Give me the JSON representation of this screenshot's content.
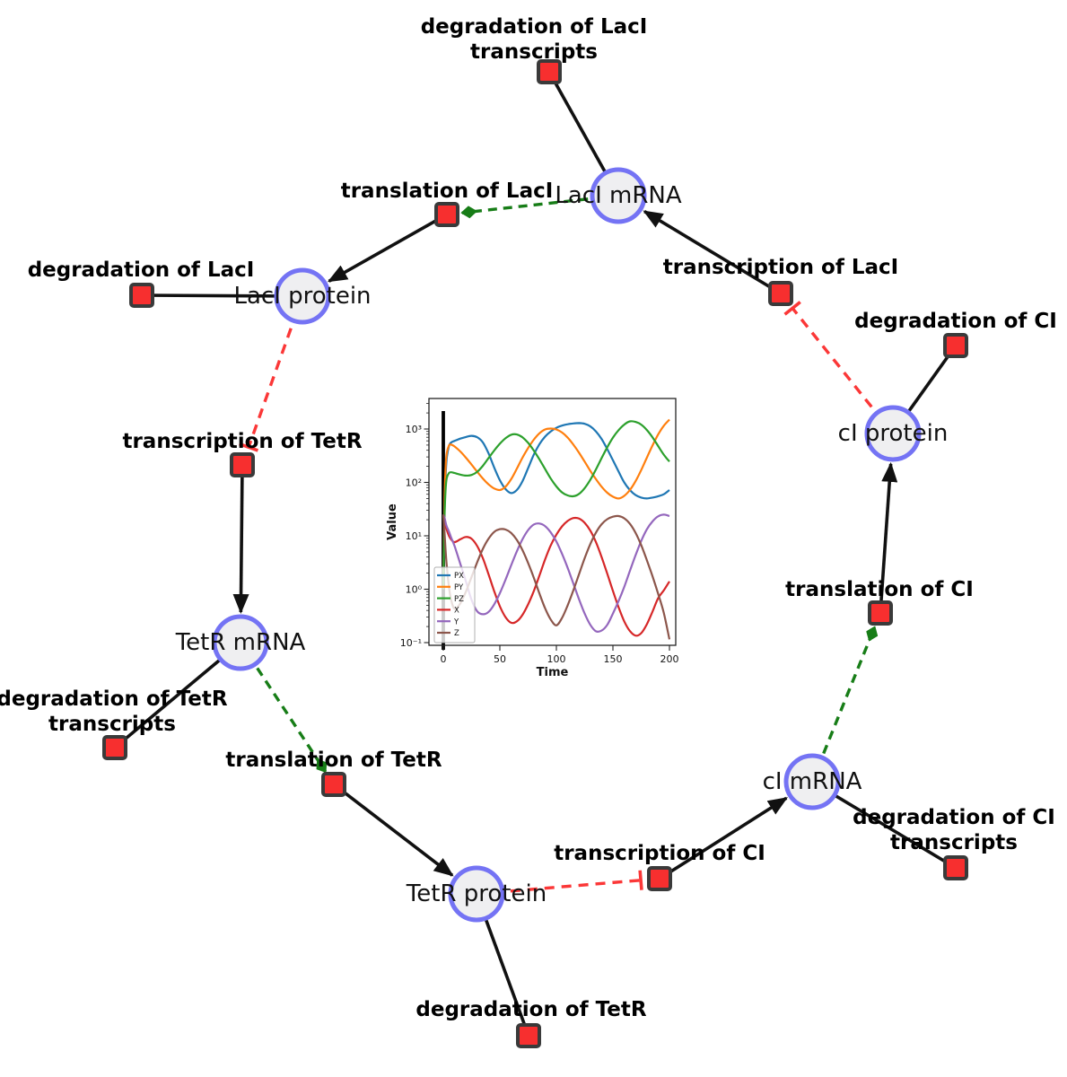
{
  "diagram": {
    "species": [
      {
        "id": "laci_mrna",
        "label": "LacI mRNA"
      },
      {
        "id": "laci_protein",
        "label": "LacI protein"
      },
      {
        "id": "tetr_mrna",
        "label": "TetR mRNA"
      },
      {
        "id": "tetr_protein",
        "label": "TetR protein"
      },
      {
        "id": "ci_mrna",
        "label": "cI mRNA"
      },
      {
        "id": "ci_protein",
        "label": "cI protein"
      }
    ],
    "reactions": [
      {
        "id": "deg_laci_tx",
        "lines": [
          "degradation of LacI",
          "transcripts"
        ]
      },
      {
        "id": "transl_laci",
        "lines": [
          "translation of LacI"
        ]
      },
      {
        "id": "deg_laci",
        "lines": [
          "degradation of LacI"
        ]
      },
      {
        "id": "tx_laci",
        "lines": [
          "transcription of LacI"
        ]
      },
      {
        "id": "deg_ci",
        "lines": [
          "degradation of CI"
        ]
      },
      {
        "id": "tx_tetr",
        "lines": [
          "transcription of TetR"
        ]
      },
      {
        "id": "deg_tetr_tx",
        "lines": [
          "degradation of TetR",
          "transcripts"
        ]
      },
      {
        "id": "transl_tetr",
        "lines": [
          "translation of TetR"
        ]
      },
      {
        "id": "deg_tetr",
        "lines": [
          "degradation of TetR"
        ]
      },
      {
        "id": "tx_ci",
        "lines": [
          "transcription of CI"
        ]
      },
      {
        "id": "deg_ci_tx",
        "lines": [
          "degradation of CI",
          "transcripts"
        ]
      },
      {
        "id": "transl_ci",
        "lines": [
          "translation of CI"
        ]
      }
    ],
    "edges": [
      {
        "from": "laci_mrna",
        "to": "deg_laci_tx",
        "type": "consumption"
      },
      {
        "from": "laci_mrna",
        "to": "transl_laci",
        "type": "modifier"
      },
      {
        "from": "transl_laci",
        "to": "laci_protein",
        "type": "production"
      },
      {
        "from": "laci_protein",
        "to": "deg_laci",
        "type": "consumption"
      },
      {
        "from": "laci_protein",
        "to": "tx_tetr",
        "type": "inhibition"
      },
      {
        "from": "tx_tetr",
        "to": "tetr_mrna",
        "type": "production"
      },
      {
        "from": "tetr_mrna",
        "to": "deg_tetr_tx",
        "type": "consumption"
      },
      {
        "from": "tetr_mrna",
        "to": "transl_tetr",
        "type": "modifier"
      },
      {
        "from": "transl_tetr",
        "to": "tetr_protein",
        "type": "production"
      },
      {
        "from": "tetr_protein",
        "to": "deg_tetr",
        "type": "consumption"
      },
      {
        "from": "tetr_protein",
        "to": "tx_ci",
        "type": "inhibition"
      },
      {
        "from": "tx_ci",
        "to": "ci_mrna",
        "type": "production"
      },
      {
        "from": "ci_mrna",
        "to": "deg_ci_tx",
        "type": "consumption"
      },
      {
        "from": "ci_mrna",
        "to": "transl_ci",
        "type": "modifier"
      },
      {
        "from": "transl_ci",
        "to": "ci_protein",
        "type": "production"
      },
      {
        "from": "ci_protein",
        "to": "deg_ci",
        "type": "consumption"
      },
      {
        "from": "ci_protein",
        "to": "tx_laci",
        "type": "inhibition"
      },
      {
        "from": "tx_laci",
        "to": "laci_mrna",
        "type": "production"
      }
    ],
    "colors": {
      "species_fill": "#efeff1",
      "species_border": "#7473f4",
      "reaction_fill": "#f72f2f",
      "reaction_border": "#3a3a3a",
      "edge": "#111111",
      "modifier": "#177d17",
      "inhibition": "#fb3737"
    }
  },
  "chart_data": {
    "type": "line",
    "title": "",
    "xlabel": "Time",
    "ylabel": "Value",
    "yscale": "log",
    "xlim": [
      0,
      200
    ],
    "ylim_log": [
      -1.05,
      3.57
    ],
    "x_ticks": [
      0,
      50,
      100,
      150,
      200
    ],
    "y_tick_exponents": [
      -1,
      0,
      1,
      2,
      3
    ],
    "y_tick_labels": [
      "10⁻¹",
      "10⁰",
      "10¹",
      "10²",
      "10³"
    ],
    "legend_position": "lower left",
    "vline_x": 0,
    "x": [
      0,
      1,
      2,
      3,
      5,
      7,
      10,
      15,
      20,
      25,
      30,
      35,
      40,
      45,
      50,
      55,
      60,
      65,
      70,
      75,
      80,
      85,
      90,
      95,
      100,
      105,
      110,
      115,
      120,
      125,
      130,
      135,
      140,
      145,
      150,
      155,
      160,
      165,
      170,
      175,
      180,
      185,
      190,
      195,
      200
    ],
    "series": [
      {
        "name": "PX",
        "color": "#1f77b4",
        "values": [
          1,
          25,
          120,
          280,
          480,
          560,
          600,
          660,
          710,
          745,
          700,
          560,
          350,
          190,
          110,
          75,
          63,
          72,
          105,
          185,
          330,
          520,
          720,
          900,
          1050,
          1160,
          1230,
          1270,
          1290,
          1250,
          1120,
          900,
          650,
          420,
          260,
          160,
          100,
          72,
          58,
          52,
          50,
          52,
          55,
          60,
          72
        ]
      },
      {
        "name": "PY",
        "color": "#ff7f0e",
        "values": [
          1,
          40,
          180,
          350,
          490,
          510,
          470,
          380,
          290,
          215,
          158,
          118,
          92,
          77,
          72,
          83,
          115,
          180,
          290,
          440,
          630,
          830,
          980,
          1020,
          980,
          860,
          690,
          510,
          360,
          245,
          165,
          115,
          83,
          64,
          54,
          50,
          56,
          72,
          105,
          170,
          290,
          490,
          790,
          1150,
          1500
        ]
      },
      {
        "name": "PZ",
        "color": "#2ca02c",
        "values": [
          1,
          20,
          70,
          120,
          150,
          155,
          150,
          140,
          134,
          138,
          158,
          205,
          285,
          395,
          530,
          670,
          780,
          790,
          700,
          550,
          395,
          270,
          178,
          118,
          84,
          65,
          57,
          55,
          61,
          78,
          112,
          175,
          285,
          455,
          690,
          950,
          1210,
          1390,
          1360,
          1210,
          960,
          700,
          480,
          330,
          245
        ]
      },
      {
        "name": "X",
        "color": "#d62728",
        "values": [
          23,
          20,
          16,
          13,
          10,
          8.5,
          7.6,
          8.6,
          9.5,
          8.8,
          6.4,
          3.8,
          1.9,
          0.92,
          0.48,
          0.3,
          0.235,
          0.25,
          0.33,
          0.52,
          0.92,
          1.8,
          3.6,
          6.6,
          10.5,
          15,
          19,
          21.5,
          21,
          17.5,
          12.5,
          7.6,
          4,
          1.95,
          0.93,
          0.46,
          0.25,
          0.165,
          0.135,
          0.15,
          0.22,
          0.38,
          0.68,
          0.95,
          1.4
        ]
      },
      {
        "name": "Y",
        "color": "#9467bd",
        "values": [
          25,
          22,
          18,
          15,
          12,
          9.2,
          6.4,
          3,
          1.4,
          0.63,
          0.385,
          0.34,
          0.375,
          0.52,
          0.84,
          1.5,
          2.8,
          5.1,
          8.6,
          12.8,
          16.3,
          17,
          15.2,
          11.6,
          7.8,
          4.6,
          2.5,
          1.28,
          0.65,
          0.35,
          0.215,
          0.163,
          0.168,
          0.215,
          0.35,
          0.6,
          1.1,
          2.2,
          4.3,
          8,
          13.2,
          18.6,
          23.2,
          25,
          23.5
        ]
      },
      {
        "name": "Z",
        "color": "#8c564b",
        "values": [
          25,
          12,
          5.5,
          2.8,
          1.1,
          0.62,
          0.43,
          0.54,
          0.9,
          1.7,
          3.2,
          5.7,
          8.8,
          11.8,
          13.3,
          13.1,
          11.3,
          8.4,
          5.4,
          3.1,
          1.65,
          0.83,
          0.44,
          0.27,
          0.21,
          0.29,
          0.5,
          0.95,
          1.9,
          3.8,
          7,
          11.5,
          16.5,
          20.5,
          22.8,
          23.4,
          21.3,
          16.8,
          11.4,
          6.7,
          3.5,
          1.75,
          0.82,
          0.36,
          0.115
        ]
      }
    ]
  }
}
